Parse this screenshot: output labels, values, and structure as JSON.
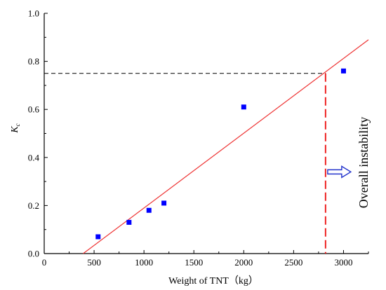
{
  "chart_data": {
    "type": "scatter",
    "title": "",
    "xlabel": "Weight of TNT（kg）",
    "ylabel_main": "K",
    "ylabel_sub": "c",
    "xlim": [
      0,
      3250
    ],
    "ylim": [
      0,
      1.0
    ],
    "x_ticks": [
      0,
      500,
      1000,
      1500,
      2000,
      2500,
      3000
    ],
    "y_ticks": [
      0.0,
      0.2,
      0.4,
      0.6,
      0.8,
      1.0
    ],
    "x_tick_labels": [
      "0",
      "500",
      "1000",
      "1500",
      "2000",
      "2500",
      "3000"
    ],
    "y_tick_labels": [
      "0.0",
      "0.2",
      "0.4",
      "0.6",
      "0.8",
      "1.0"
    ],
    "grid": false,
    "series": [
      {
        "marker": "square",
        "color": "#0000ff",
        "points": [
          {
            "x": 540,
            "y": 0.07
          },
          {
            "x": 850,
            "y": 0.13
          },
          {
            "x": 1050,
            "y": 0.18
          },
          {
            "x": 1200,
            "y": 0.21
          },
          {
            "x": 2000,
            "y": 0.61
          },
          {
            "x": 3000,
            "y": 0.76
          }
        ]
      }
    ],
    "fit_line": {
      "color": "#ee3333",
      "x": [
        390,
        3250
      ],
      "y": [
        0.0,
        0.89
      ]
    },
    "threshold": {
      "y": 0.75,
      "x": 2820,
      "h_line_color": "#000000",
      "v_line_color": "#ee2222"
    },
    "annotation": {
      "text": "Overall instability",
      "arrow_color": "#2233cc",
      "at_y": 0.34
    }
  }
}
